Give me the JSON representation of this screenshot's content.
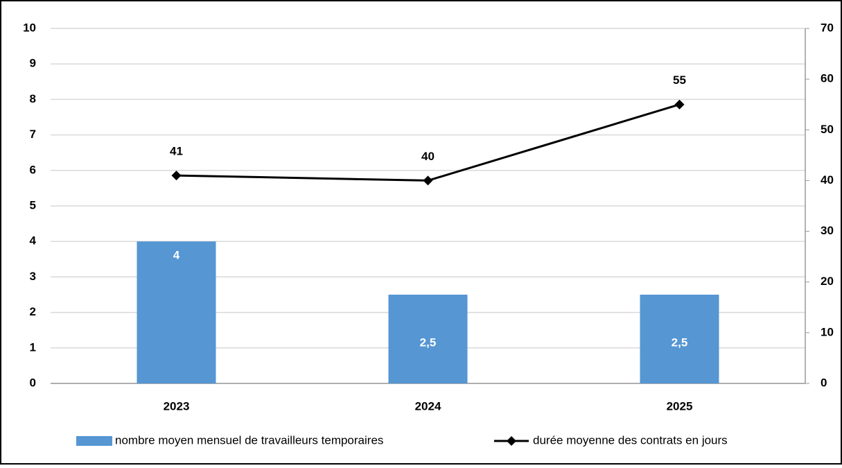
{
  "chart_data": {
    "type": "bar",
    "categories": [
      "2023",
      "2024",
      "2025"
    ],
    "series": [
      {
        "name": "nombre moyen mensuel de travailleurs temporaires",
        "type": "bar",
        "color": "#5596d3",
        "values": [
          4,
          2.5,
          2.5
        ],
        "value_labels": [
          "4",
          "2,5",
          "2,5"
        ]
      },
      {
        "name": "durée moyenne des contrats en jours",
        "type": "line",
        "axis": "y2",
        "color": "#000000",
        "values": [
          41,
          40,
          55
        ]
      }
    ],
    "ylim": [
      0,
      10
    ],
    "yticks": [
      0,
      1,
      2,
      3,
      4,
      5,
      6,
      7,
      8,
      9,
      10
    ],
    "y2lim": [
      0,
      70
    ],
    "y2ticks": [
      0,
      10,
      20,
      30,
      40,
      50,
      60,
      70
    ],
    "grid": true,
    "legend": "bottom"
  }
}
